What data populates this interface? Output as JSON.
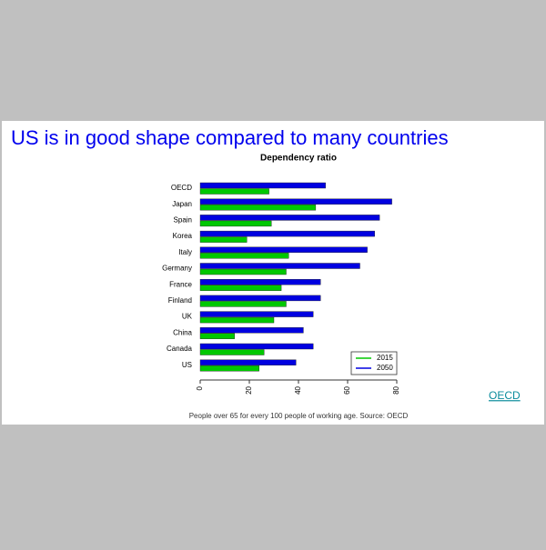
{
  "slide_title": "US is in good shape compared to many countries",
  "link": "OECD",
  "chart_data": {
    "type": "barh",
    "title": "Dependency ratio",
    "caption": "People over 65 for every 100 people of working age. Source: OECD",
    "categories": [
      "OECD",
      "Japan",
      "Spain",
      "Korea",
      "Italy",
      "Germany",
      "France",
      "Finland",
      "UK",
      "China",
      "Canada",
      "US"
    ],
    "series": [
      {
        "name": "2050",
        "color": "#0000e0",
        "values": [
          51,
          78,
          73,
          71,
          68,
          65,
          49,
          49,
          46,
          42,
          46,
          39
        ]
      },
      {
        "name": "2015",
        "color": "#00c800",
        "values": [
          28,
          47,
          29,
          19,
          36,
          35,
          33,
          35,
          30,
          14,
          26,
          24
        ]
      }
    ],
    "xlim": [
      0,
      80
    ],
    "xticks": [
      0,
      20,
      40,
      60,
      80
    ],
    "legend": "bottom-right"
  }
}
